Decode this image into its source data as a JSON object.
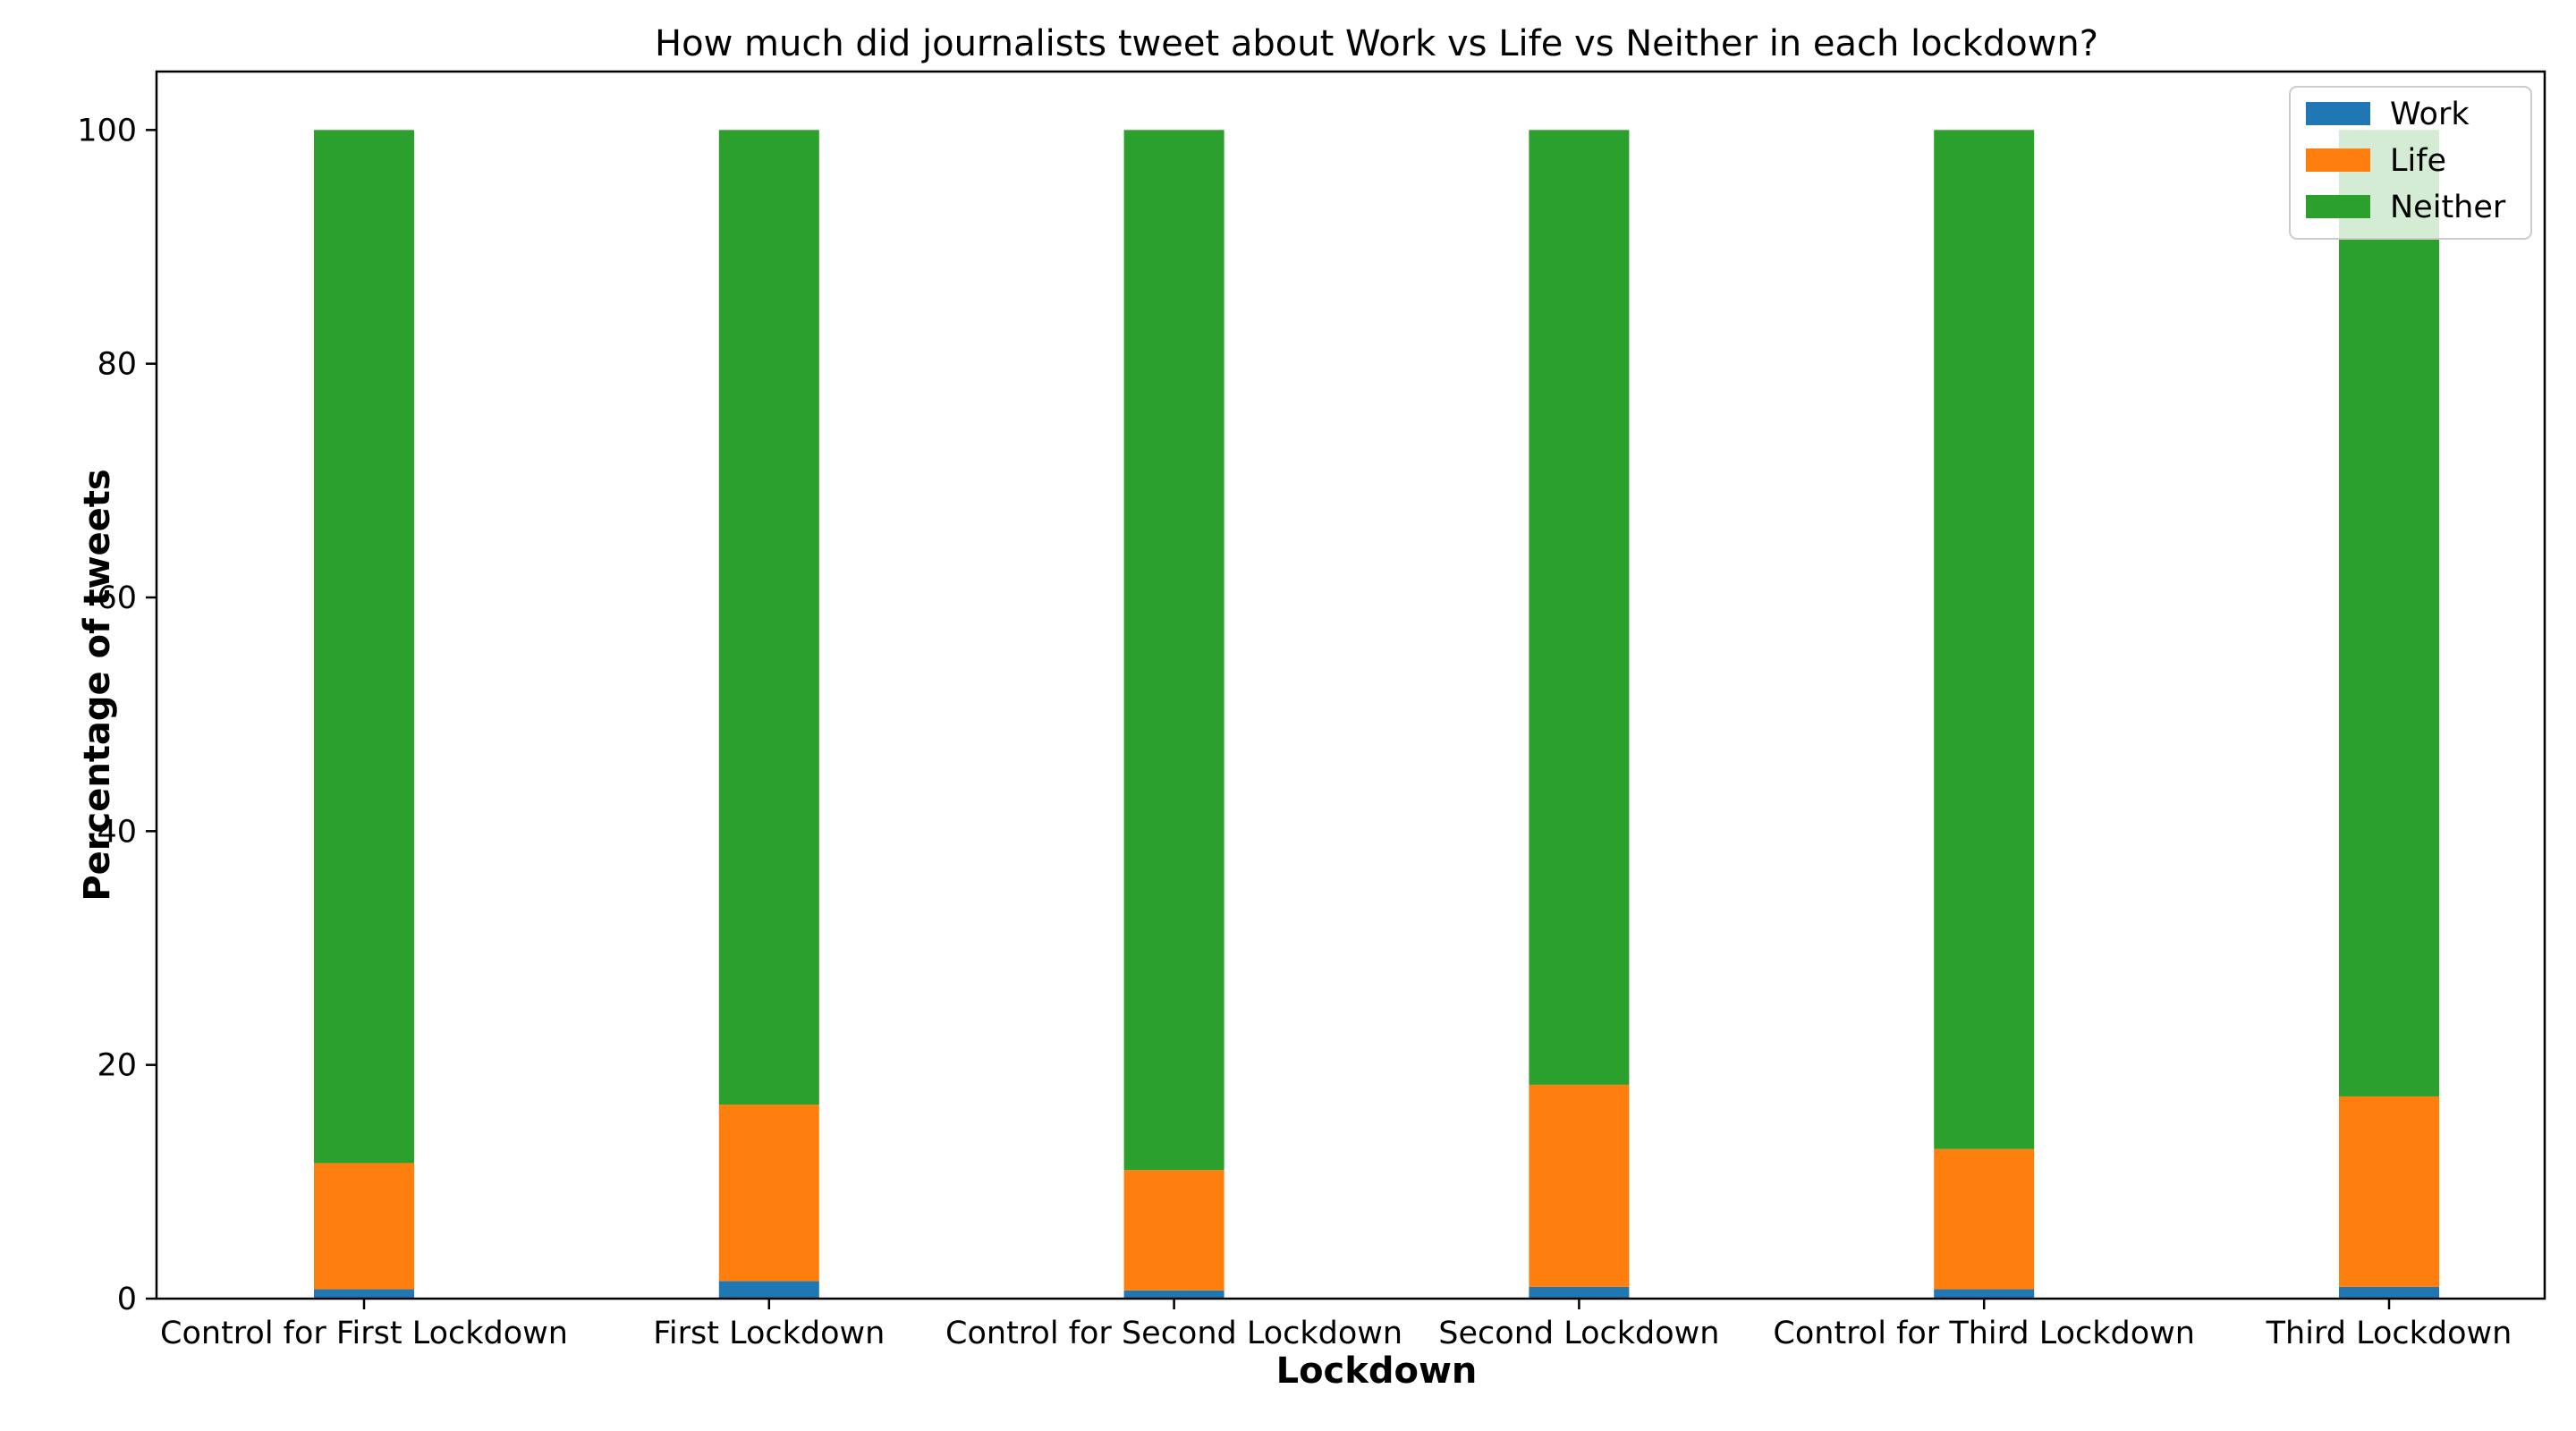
{
  "chart_data": {
    "type": "bar",
    "stacked": true,
    "title": "How much did journalists tweet about Work vs Life vs Neither in each lockdown?",
    "xlabel": "Lockdown",
    "ylabel": "Percentage of tweets",
    "ylim": [
      0,
      105
    ],
    "yticks": [
      0,
      20,
      40,
      60,
      80,
      100
    ],
    "ytick_labels": [
      "0",
      "20",
      "40",
      "60",
      "80",
      "100"
    ],
    "grid": false,
    "legend_position": "top-right",
    "categories": [
      "Control for First Lockdown",
      "First Lockdown",
      "Control for Second Lockdown",
      "Second Lockdown",
      "Control for Third Lockdown",
      "Third Lockdown"
    ],
    "series": [
      {
        "name": "Work",
        "color": "#1f77b4",
        "values": [
          0.8,
          1.5,
          0.7,
          1.0,
          0.8,
          1.0
        ]
      },
      {
        "name": "Life",
        "color": "#ff7f0e",
        "values": [
          10.8,
          15.1,
          10.3,
          17.3,
          12.0,
          16.3
        ]
      },
      {
        "name": "Neither",
        "color": "#2ca02c",
        "values": [
          88.4,
          83.4,
          89.0,
          81.7,
          87.2,
          82.7
        ]
      }
    ]
  }
}
